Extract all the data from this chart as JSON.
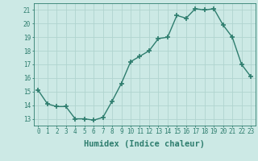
{
  "x": [
    0,
    1,
    2,
    3,
    4,
    5,
    6,
    7,
    8,
    9,
    10,
    11,
    12,
    13,
    14,
    15,
    16,
    17,
    18,
    19,
    20,
    21,
    22,
    23
  ],
  "y": [
    15.1,
    14.1,
    13.9,
    13.9,
    13.0,
    13.0,
    12.9,
    13.1,
    14.3,
    15.6,
    17.2,
    17.6,
    18.0,
    18.9,
    19.0,
    20.6,
    20.4,
    21.1,
    21.0,
    21.1,
    19.9,
    19.0,
    17.0,
    16.1
  ],
  "line_color": "#2e7d6e",
  "marker": "+",
  "marker_size": 4,
  "marker_linewidth": 1.2,
  "bg_color": "#cce9e5",
  "grid_color": "#b0d4cf",
  "xlabel": "Humidex (Indice chaleur)",
  "xlim": [
    -0.5,
    23.5
  ],
  "ylim": [
    12.5,
    21.5
  ],
  "yticks": [
    13,
    14,
    15,
    16,
    17,
    18,
    19,
    20,
    21
  ],
  "xticks": [
    0,
    1,
    2,
    3,
    4,
    5,
    6,
    7,
    8,
    9,
    10,
    11,
    12,
    13,
    14,
    15,
    16,
    17,
    18,
    19,
    20,
    21,
    22,
    23
  ],
  "tick_fontsize": 5.5,
  "label_fontsize": 7.5,
  "text_color": "#2e7d6e",
  "line_width": 1.0
}
